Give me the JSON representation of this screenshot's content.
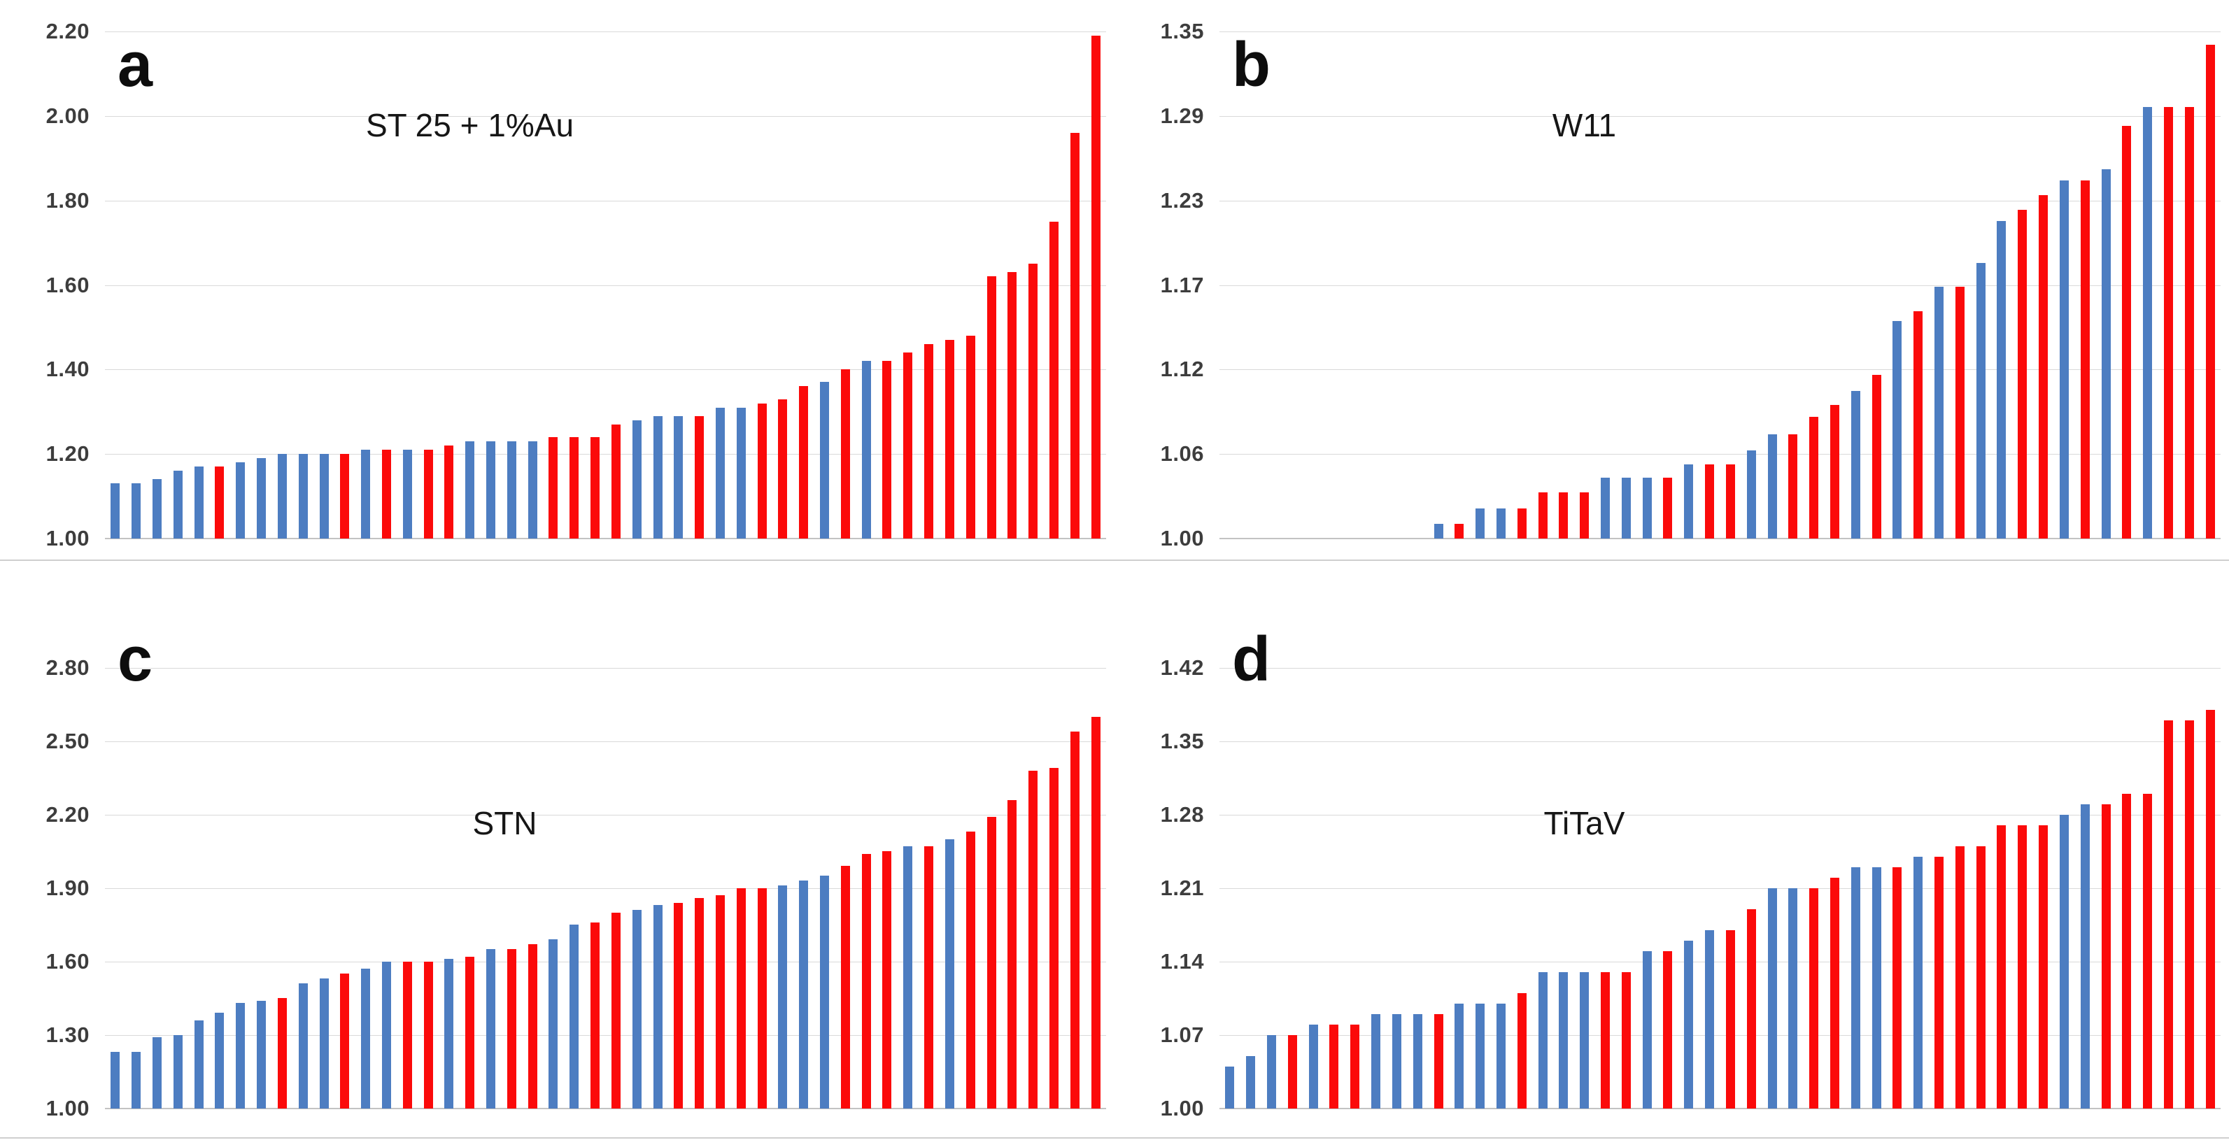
{
  "figure": {
    "background_color": "#ffffff",
    "bar_color_blue": "#4d7dc1",
    "bar_color_red": "#fb0a0a",
    "gridline_color": "#d9d9d9",
    "axis_line_color": "#c3c3c3",
    "tick_text_color": "#3d3d3d"
  },
  "chart_data": [
    {
      "panel_letter": "a",
      "type": "bar",
      "title": "ST 25 + 1%Au",
      "xlabel": "",
      "ylabel": "",
      "ylim": [
        1.0,
        2.2
      ],
      "grid": true,
      "legend_position": "none",
      "ytick_labels": [
        "1.00",
        "1.20",
        "1.40",
        "1.60",
        "1.80",
        "2.00",
        "2.20"
      ],
      "yticks": [
        1.0,
        1.2,
        1.4,
        1.6,
        1.8,
        2.0,
        2.2
      ],
      "values": [
        1.13,
        1.13,
        1.14,
        1.16,
        1.17,
        1.17,
        1.18,
        1.19,
        1.2,
        1.2,
        1.2,
        1.2,
        1.21,
        1.21,
        1.21,
        1.21,
        1.22,
        1.23,
        1.23,
        1.23,
        1.23,
        1.24,
        1.24,
        1.24,
        1.27,
        1.28,
        1.29,
        1.29,
        1.29,
        1.31,
        1.31,
        1.32,
        1.33,
        1.36,
        1.37,
        1.4,
        1.42,
        1.42,
        1.44,
        1.46,
        1.47,
        1.48,
        1.62,
        1.63,
        1.65,
        1.75,
        1.96,
        2.19
      ],
      "colors": [
        "b",
        "b",
        "b",
        "b",
        "b",
        "r",
        "b",
        "b",
        "b",
        "b",
        "b",
        "r",
        "b",
        "r",
        "b",
        "r",
        "r",
        "b",
        "b",
        "b",
        "b",
        "r",
        "r",
        "r",
        "r",
        "b",
        "b",
        "b",
        "r",
        "b",
        "b",
        "r",
        "r",
        "r",
        "b",
        "r",
        "b",
        "r",
        "r",
        "r",
        "r",
        "r",
        "r",
        "r",
        "r",
        "r",
        "r",
        "r"
      ]
    },
    {
      "panel_letter": "b",
      "type": "bar",
      "title": "W11",
      "xlabel": "",
      "ylabel": "",
      "ylim": [
        1.0,
        1.35
      ],
      "grid": true,
      "legend_position": "none",
      "ytick_labels": [
        "1.00",
        "1.06",
        "1.12",
        "1.17",
        "1.23",
        "1.29",
        "1.35"
      ],
      "yticks": [
        1.0,
        1.0583,
        1.1167,
        1.175,
        1.2333,
        1.2917,
        1.35
      ],
      "values": [
        1.0,
        1.0,
        1.0,
        1.0,
        1.0,
        1.0,
        1.0,
        1.0,
        1.0,
        1.0,
        1.01,
        1.01,
        1.021,
        1.021,
        1.021,
        1.032,
        1.032,
        1.032,
        1.042,
        1.042,
        1.042,
        1.042,
        1.051,
        1.051,
        1.051,
        1.061,
        1.072,
        1.072,
        1.084,
        1.092,
        1.102,
        1.113,
        1.15,
        1.157,
        1.174,
        1.174,
        1.19,
        1.219,
        1.227,
        1.237,
        1.247,
        1.247,
        1.255,
        1.285,
        1.298,
        1.298,
        1.298,
        1.341
      ],
      "colors": [
        "b",
        "b",
        "b",
        "b",
        "b",
        "b",
        "b",
        "b",
        "b",
        "b",
        "b",
        "r",
        "b",
        "b",
        "r",
        "r",
        "r",
        "r",
        "b",
        "b",
        "b",
        "r",
        "b",
        "r",
        "r",
        "b",
        "b",
        "r",
        "r",
        "r",
        "b",
        "r",
        "b",
        "r",
        "b",
        "r",
        "b",
        "b",
        "r",
        "r",
        "b",
        "r",
        "b",
        "r",
        "b",
        "r",
        "r",
        "r"
      ]
    },
    {
      "panel_letter": "c",
      "type": "bar",
      "title": "STN",
      "xlabel": "",
      "ylabel": "",
      "ylim": [
        1.0,
        2.8
      ],
      "grid": true,
      "legend_position": "none",
      "ytick_labels": [
        "1.00",
        "1.30",
        "1.60",
        "1.90",
        "2.20",
        "2.50",
        "2.80"
      ],
      "yticks": [
        1.0,
        1.3,
        1.6,
        1.9,
        2.2,
        2.5,
        2.8
      ],
      "values": [
        1.23,
        1.23,
        1.29,
        1.3,
        1.36,
        1.39,
        1.43,
        1.44,
        1.45,
        1.51,
        1.53,
        1.55,
        1.57,
        1.6,
        1.6,
        1.6,
        1.61,
        1.62,
        1.65,
        1.65,
        1.67,
        1.69,
        1.75,
        1.76,
        1.8,
        1.81,
        1.83,
        1.84,
        1.86,
        1.87,
        1.9,
        1.9,
        1.91,
        1.93,
        1.95,
        1.99,
        2.04,
        2.05,
        2.07,
        2.07,
        2.1,
        2.13,
        2.19,
        2.26,
        2.38,
        2.39,
        2.54,
        2.6
      ],
      "colors": [
        "b",
        "b",
        "b",
        "b",
        "b",
        "b",
        "b",
        "b",
        "r",
        "b",
        "b",
        "r",
        "b",
        "b",
        "r",
        "r",
        "b",
        "r",
        "b",
        "r",
        "r",
        "b",
        "b",
        "r",
        "r",
        "b",
        "b",
        "r",
        "r",
        "r",
        "r",
        "r",
        "b",
        "b",
        "b",
        "r",
        "r",
        "r",
        "b",
        "r",
        "b",
        "r",
        "r",
        "r",
        "r",
        "r",
        "r",
        "r"
      ]
    },
    {
      "panel_letter": "d",
      "type": "bar",
      "title": "TiTaV",
      "xlabel": "",
      "ylabel": "",
      "ylim": [
        1.0,
        1.42
      ],
      "grid": true,
      "legend_position": "none",
      "ytick_labels": [
        "1.00",
        "1.07",
        "1.14",
        "1.21",
        "1.28",
        "1.35",
        "1.42"
      ],
      "yticks": [
        1.0,
        1.07,
        1.14,
        1.21,
        1.28,
        1.35,
        1.42
      ],
      "values": [
        1.04,
        1.05,
        1.07,
        1.07,
        1.08,
        1.08,
        1.08,
        1.09,
        1.09,
        1.09,
        1.09,
        1.1,
        1.1,
        1.1,
        1.11,
        1.13,
        1.13,
        1.13,
        1.13,
        1.13,
        1.15,
        1.15,
        1.16,
        1.17,
        1.17,
        1.19,
        1.21,
        1.21,
        1.21,
        1.22,
        1.23,
        1.23,
        1.23,
        1.24,
        1.24,
        1.25,
        1.25,
        1.27,
        1.27,
        1.27,
        1.28,
        1.29,
        1.29,
        1.3,
        1.3,
        1.37,
        1.37,
        1.38
      ],
      "colors": [
        "b",
        "b",
        "b",
        "r",
        "b",
        "r",
        "r",
        "b",
        "b",
        "b",
        "r",
        "b",
        "b",
        "b",
        "r",
        "b",
        "b",
        "b",
        "r",
        "r",
        "b",
        "r",
        "b",
        "b",
        "r",
        "r",
        "b",
        "b",
        "r",
        "r",
        "b",
        "b",
        "r",
        "b",
        "r",
        "r",
        "r",
        "r",
        "r",
        "r",
        "b",
        "b",
        "r",
        "r",
        "r",
        "r",
        "r",
        "r"
      ]
    }
  ]
}
